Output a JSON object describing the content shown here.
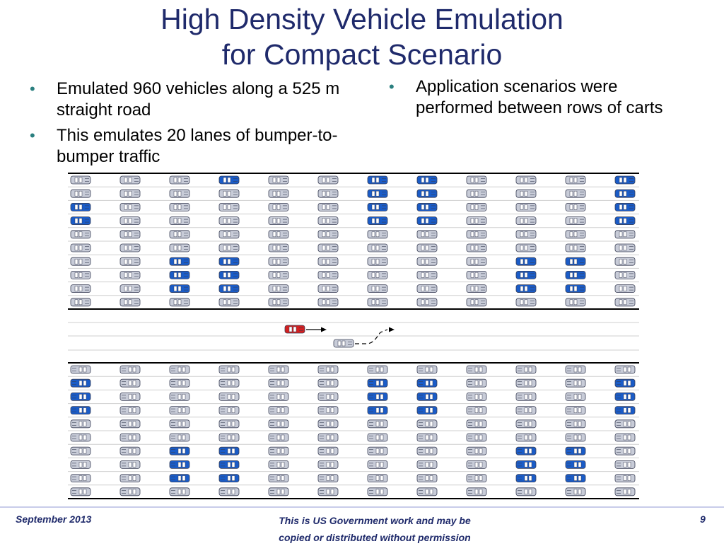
{
  "slide": {
    "title_line1": "High Density Vehicle Emulation",
    "title_line2": "for Compact Scenario",
    "left_bullets": [
      "Emulated 960 vehicles along a 525 m straight road",
      "This emulates 20 lanes of bumper-to-bumper traffic"
    ],
    "right_bullets": [
      "Application scenarios were performed between rows of carts"
    ]
  },
  "diagram": {
    "columns": 12,
    "lanes_per_block": 10,
    "colors": {
      "gray_car": "#c8ccd8",
      "blue_car": "#1a5cc8",
      "red_car": "#d42020",
      "lane_line": "#cfcfcf",
      "road_edge": "#000000"
    },
    "blue_pattern_top": [
      [
        0,
        3
      ],
      [
        0,
        6
      ],
      [
        0,
        7
      ],
      [
        0,
        11
      ],
      [
        1,
        6
      ],
      [
        1,
        7
      ],
      [
        1,
        11
      ],
      [
        2,
        0
      ],
      [
        2,
        6
      ],
      [
        2,
        7
      ],
      [
        2,
        11
      ],
      [
        3,
        0
      ],
      [
        3,
        6
      ],
      [
        3,
        7
      ],
      [
        3,
        11
      ],
      [
        6,
        2
      ],
      [
        6,
        3
      ],
      [
        6,
        9
      ],
      [
        6,
        10
      ],
      [
        7,
        2
      ],
      [
        7,
        3
      ],
      [
        7,
        9
      ],
      [
        7,
        10
      ],
      [
        8,
        2
      ],
      [
        8,
        3
      ],
      [
        8,
        9
      ],
      [
        8,
        10
      ]
    ],
    "blue_pattern_bottom": [
      [
        1,
        0
      ],
      [
        1,
        6
      ],
      [
        1,
        7
      ],
      [
        1,
        11
      ],
      [
        2,
        0
      ],
      [
        2,
        6
      ],
      [
        2,
        7
      ],
      [
        2,
        11
      ],
      [
        3,
        0
      ],
      [
        3,
        6
      ],
      [
        3,
        7
      ],
      [
        3,
        11
      ],
      [
        6,
        2
      ],
      [
        6,
        3
      ],
      [
        6,
        9
      ],
      [
        6,
        10
      ],
      [
        7,
        2
      ],
      [
        7,
        3
      ],
      [
        7,
        9
      ],
      [
        7,
        10
      ],
      [
        8,
        2
      ],
      [
        8,
        3
      ],
      [
        8,
        9
      ],
      [
        8,
        10
      ]
    ]
  },
  "footer": {
    "date": "September 2013",
    "notice_line1": "This is US Government work and may be",
    "notice_line2": "copied or distributed without permission",
    "page": "9"
  }
}
